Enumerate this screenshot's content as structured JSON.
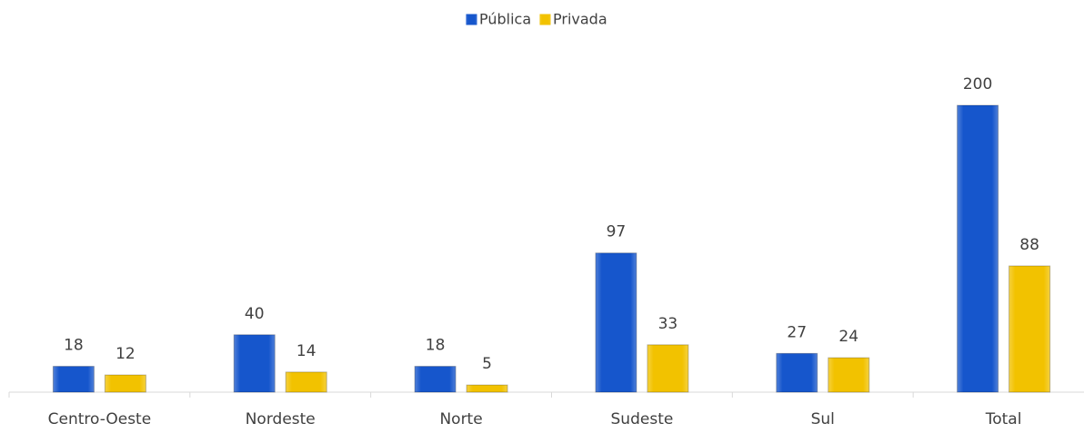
{
  "chart_data": {
    "type": "bar",
    "categories": [
      "Centro-Oeste",
      "Nordeste",
      "Norte",
      "Sudeste",
      "Sul",
      "Total"
    ],
    "series": [
      {
        "name": "Pública",
        "color": "#1656cc",
        "values": [
          18,
          40,
          18,
          97,
          27,
          200
        ]
      },
      {
        "name": "Privada",
        "color": "#f2c200",
        "values": [
          12,
          14,
          5,
          33,
          24,
          88
        ]
      }
    ],
    "legend": "top"
  }
}
